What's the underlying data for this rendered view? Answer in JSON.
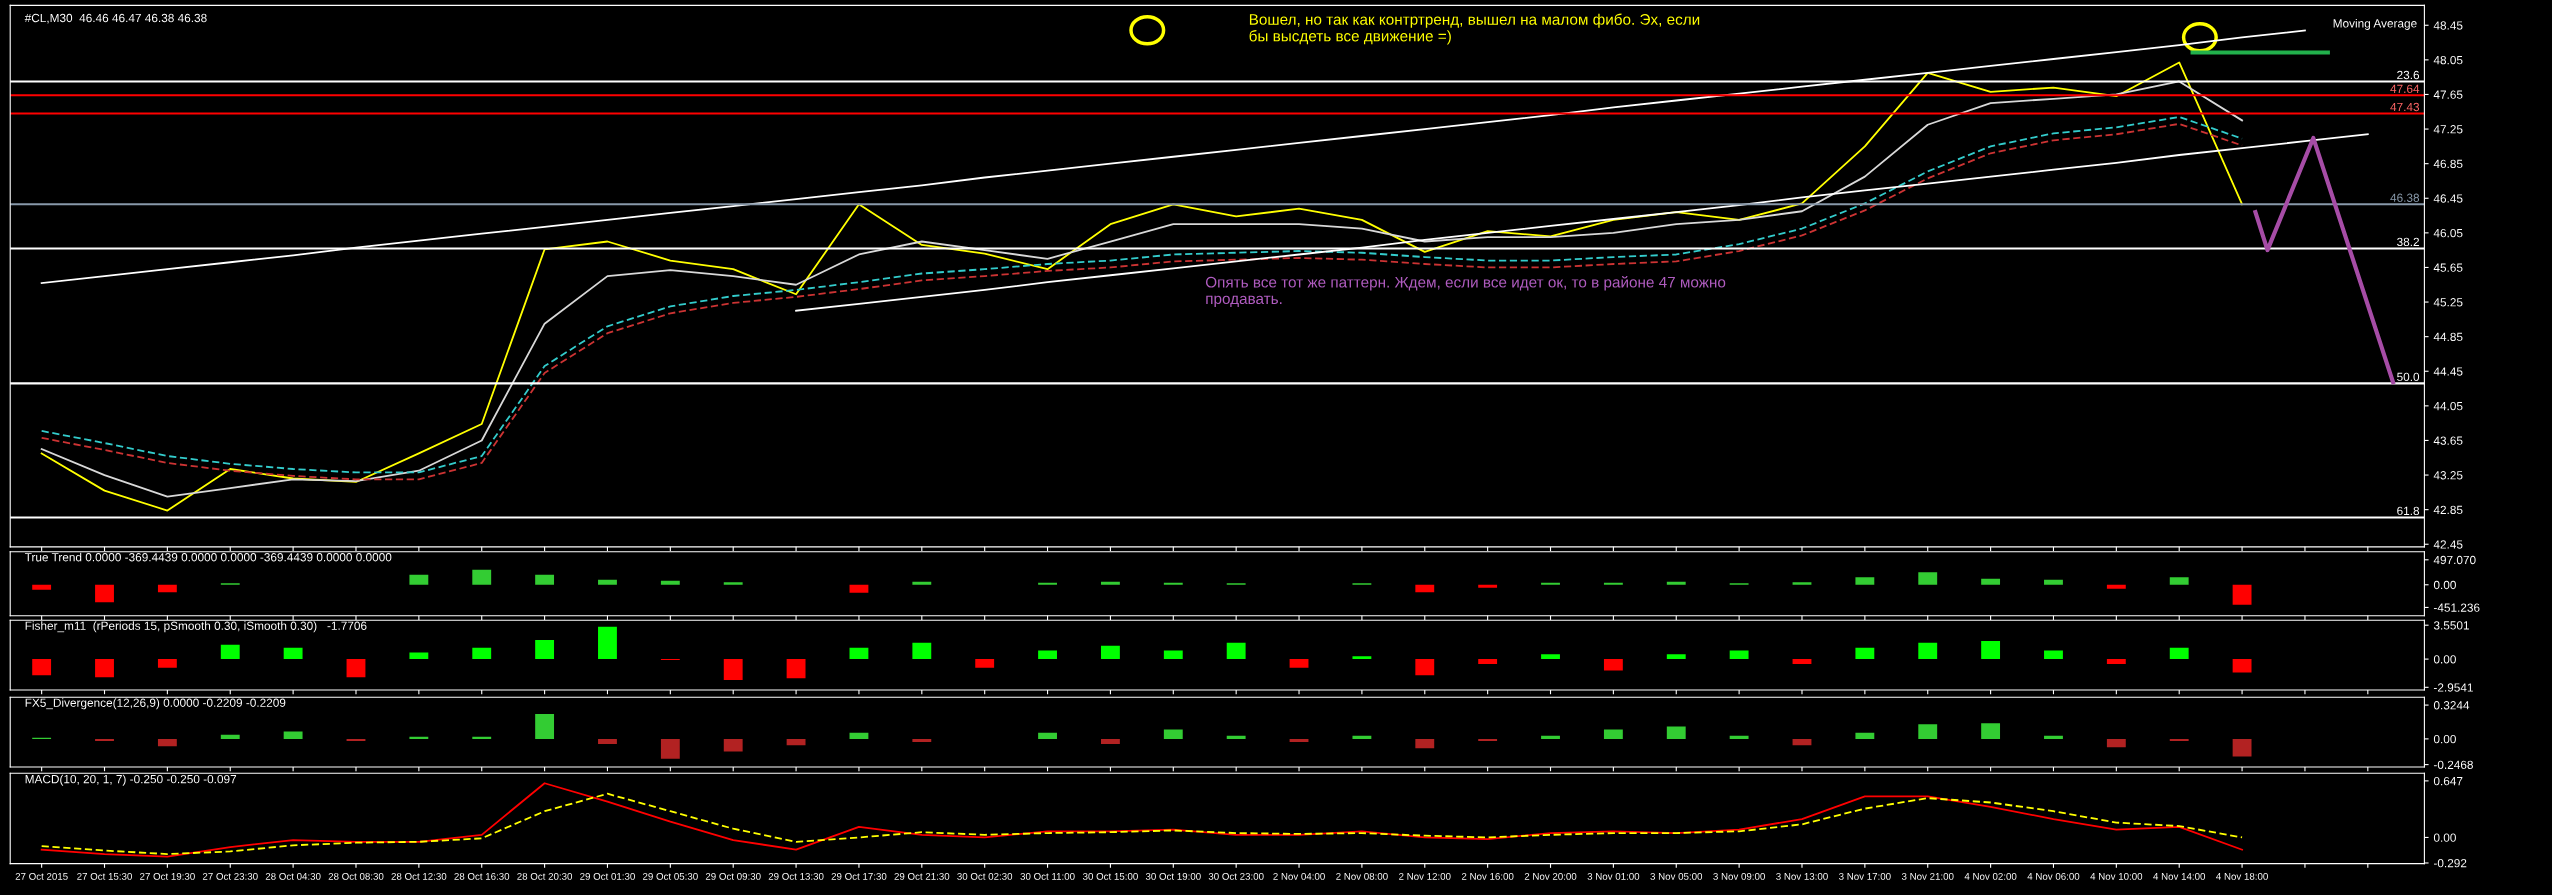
{
  "chart_data": [
    {
      "type": "line",
      "title": "#CL,M30  46.46 46.47 46.38 46.38",
      "tick_labels": "y",
      "grid": false,
      "series": [
        {
          "color": "#ffff00",
          "values": [
            43.5,
            43.07,
            42.84,
            43.32,
            43.21,
            43.17,
            43.5,
            43.84,
            45.86,
            45.95,
            45.73,
            45.63,
            45.34,
            46.38,
            45.91,
            45.81,
            45.63,
            46.15,
            46.38,
            46.24,
            46.33,
            46.2,
            45.83,
            46.07,
            46.01,
            46.2,
            46.29,
            46.2,
            46.39,
            47.05,
            47.9,
            47.68,
            47.73,
            47.63,
            48.02,
            46.38,
            null,
            null
          ]
        },
        {
          "color": "#d8d8d8",
          "values": [
            43.55,
            43.25,
            43.0,
            43.1,
            43.2,
            43.18,
            43.3,
            43.65,
            45.0,
            45.55,
            45.62,
            45.55,
            45.45,
            45.8,
            45.95,
            45.85,
            45.75,
            45.95,
            46.15,
            46.15,
            46.15,
            46.1,
            45.95,
            46.0,
            46.0,
            46.05,
            46.15,
            46.2,
            46.3,
            46.7,
            47.3,
            47.55,
            47.6,
            47.65,
            47.8,
            47.35,
            null,
            null
          ]
        },
        {
          "color": "#33cccc",
          "line_style": "dashed",
          "values": [
            43.76,
            43.62,
            43.47,
            43.38,
            43.32,
            43.28,
            43.28,
            43.47,
            44.51,
            44.97,
            45.2,
            45.32,
            45.39,
            45.48,
            45.58,
            45.63,
            45.69,
            45.73,
            45.8,
            45.82,
            45.84,
            45.82,
            45.77,
            45.73,
            45.73,
            45.77,
            45.8,
            45.92,
            46.1,
            46.39,
            46.76,
            47.05,
            47.2,
            47.27,
            47.39,
            47.14,
            null,
            null
          ]
        },
        {
          "color": "#cc3333",
          "line_style": "dashed",
          "values": [
            43.68,
            43.54,
            43.39,
            43.3,
            43.24,
            43.2,
            43.2,
            43.39,
            44.43,
            44.89,
            45.12,
            45.24,
            45.31,
            45.4,
            45.5,
            45.55,
            45.61,
            45.65,
            45.72,
            45.74,
            45.76,
            45.74,
            45.69,
            45.65,
            45.65,
            45.69,
            45.72,
            45.84,
            46.02,
            46.31,
            46.68,
            46.97,
            47.12,
            47.19,
            47.31,
            47.06,
            null,
            null
          ]
        },
        {
          "color": "#ffffff",
          "values": [
            45.47,
            45.55,
            45.63,
            45.71,
            45.79,
            45.88,
            45.96,
            46.04,
            46.12,
            46.2,
            46.28,
            46.36,
            46.44,
            46.52,
            46.6,
            46.69,
            46.77,
            46.85,
            46.93,
            47.01,
            47.09,
            47.17,
            47.25,
            47.33,
            47.41,
            47.5,
            47.58,
            47.66,
            47.74,
            47.82,
            47.9,
            47.98,
            48.06,
            48.14,
            48.22,
            48.31,
            48.39,
            null
          ]
        },
        {
          "color": "#ffffff",
          "values": [
            null,
            null,
            null,
            null,
            null,
            null,
            null,
            null,
            null,
            null,
            null,
            null,
            45.15,
            45.23,
            45.31,
            45.39,
            45.48,
            45.56,
            45.64,
            45.72,
            45.8,
            45.88,
            45.97,
            46.05,
            46.13,
            46.21,
            46.29,
            46.37,
            46.46,
            46.54,
            46.62,
            46.7,
            46.78,
            46.86,
            46.95,
            47.03,
            47.11,
            47.19
          ]
        }
      ],
      "ref_lines": [
        {
          "axis": "y",
          "value": 47.8,
          "color": "#ffffff"
        },
        {
          "axis": "y",
          "value": 45.87,
          "color": "#ffffff"
        },
        {
          "axis": "y",
          "value": 44.31,
          "color": "#ffffff"
        },
        {
          "axis": "y",
          "value": 42.76,
          "color": "#ffffff"
        },
        {
          "axis": "y",
          "value": 47.64,
          "label": "47.64",
          "color": "#ff0000"
        },
        {
          "axis": "y",
          "value": 47.43,
          "label": "47.43",
          "color": "#ff0000"
        },
        {
          "axis": "y",
          "value": 46.38,
          "label": "46.38",
          "color": "#8899aa"
        }
      ],
      "annotations": [
        "Вошел, но так как контртренд, вышел на малом фибо. Эх, если бы высдеть все движение =)",
        "Опять все тот же паттерн. Ждем, если все идет ок, то в районе 47 можно продавать.",
        "Moving Average",
        {
          "text": "23.6",
          "y": 47.8
        },
        {
          "text": "38.2",
          "y": 45.87
        },
        {
          "text": "50.0",
          "y": 44.31
        },
        {
          "text": "61.8",
          "y": 42.76
        }
      ],
      "ylim": [
        42.42,
        48.68
      ],
      "yticks": [
        48.45,
        48.05,
        47.65,
        47.25,
        46.85,
        46.45,
        46.05,
        45.65,
        45.25,
        44.85,
        44.45,
        44.05,
        43.65,
        43.25,
        42.85,
        42.45
      ]
    },
    {
      "type": "bar",
      "title": "True Trend 0.0000 -369.4439 0.0000 0.0000 -369.4439 0.0000 0.0000",
      "tick_labels": "y",
      "values": [
        -100,
        -350,
        -150,
        30,
        0,
        0,
        200,
        300,
        200,
        100,
        80,
        50,
        0,
        -160,
        60,
        0,
        40,
        60,
        40,
        30,
        0,
        30,
        -150,
        -60,
        40,
        40,
        60,
        30,
        50,
        150,
        250,
        120,
        100,
        -80,
        150,
        -400,
        null,
        null
      ],
      "colors": [
        "#ff0000",
        "#ff0000",
        "#ff0000",
        "#33cc33",
        "#33cc33",
        "#33cc33",
        "#33cc33",
        "#33cc33",
        "#33cc33",
        "#33cc33",
        "#33cc33",
        "#33cc33",
        "#33cc33",
        "#ff0000",
        "#33cc33",
        "#33cc33",
        "#33cc33",
        "#33cc33",
        "#33cc33",
        "#33cc33",
        "#33cc33",
        "#33cc33",
        "#ff0000",
        "#ff0000",
        "#33cc33",
        "#33cc33",
        "#33cc33",
        "#33cc33",
        "#33cc33",
        "#33cc33",
        "#33cc33",
        "#33cc33",
        "#33cc33",
        "#ff0000",
        "#33cc33",
        "#ff0000",
        "#33cc33",
        "#33cc33"
      ],
      "ylim": [
        -617,
        657
      ],
      "yticks": [
        {
          "value": 497.07,
          "label": "497.070"
        },
        {
          "value": 0,
          "label": "0.00"
        },
        {
          "value": -451.236,
          "label": "-451.236"
        }
      ]
    },
    {
      "type": "bar",
      "title": "Fisher_m11  (rPeriods 15, pSmooth 0.30, iSmooth 0.30)   -1.7706",
      "tick_labels": "y",
      "values": [
        -1.7,
        -1.9,
        -0.9,
        1.5,
        1.2,
        -1.9,
        0.7,
        1.2,
        2.0,
        3.4,
        -0.1,
        -2.2,
        -2.0,
        1.2,
        1.7,
        -0.9,
        0.9,
        1.4,
        0.9,
        1.7,
        -0.9,
        0.3,
        -1.7,
        -0.5,
        0.5,
        -1.2,
        0.5,
        0.9,
        -0.5,
        1.2,
        1.7,
        1.9,
        0.9,
        -0.5,
        1.2,
        -1.4,
        null,
        null
      ],
      "colors": [
        "#ff0000",
        "#ff0000",
        "#ff0000",
        "#00ff00",
        "#00ff00",
        "#ff0000",
        "#00ff00",
        "#00ff00",
        "#00ff00",
        "#00ff00",
        "#ff0000",
        "#ff0000",
        "#ff0000",
        "#00ff00",
        "#00ff00",
        "#ff0000",
        "#00ff00",
        "#00ff00",
        "#00ff00",
        "#00ff00",
        "#ff0000",
        "#00ff00",
        "#ff0000",
        "#ff0000",
        "#00ff00",
        "#ff0000",
        "#00ff00",
        "#00ff00",
        "#ff0000",
        "#00ff00",
        "#00ff00",
        "#00ff00",
        "#00ff00",
        "#ff0000",
        "#00ff00",
        "#ff0000",
        "#00ff00",
        "#00ff00"
      ],
      "ylim": [
        -3.24,
        4.07
      ],
      "yticks": [
        3.5501,
        {
          "value": 0,
          "label": "0.00"
        },
        -2.9541
      ]
    },
    {
      "type": "bar",
      "title": "FX5_Divergence(12,26,9) 0.0000 -0.2209 -0.2209",
      "tick_labels": "y",
      "values": [
        0.01,
        -0.02,
        -0.07,
        0.04,
        0.07,
        -0.02,
        0.02,
        0.02,
        0.24,
        -0.05,
        -0.19,
        -0.12,
        -0.06,
        0.06,
        -0.03,
        0,
        0.06,
        -0.05,
        0.09,
        0.03,
        -0.03,
        0.03,
        -0.09,
        -0.02,
        0.03,
        0.09,
        0.12,
        0.03,
        -0.06,
        0.06,
        0.14,
        0.15,
        0.03,
        -0.08,
        -0.02,
        -0.17,
        null,
        null
      ],
      "colors": [
        "#33cc33",
        "#b22222",
        "#b22222",
        "#33cc33",
        "#33cc33",
        "#b22222",
        "#33cc33",
        "#33cc33",
        "#33cc33",
        "#b22222",
        "#b22222",
        "#b22222",
        "#b22222",
        "#33cc33",
        "#b22222",
        "#33cc33",
        "#33cc33",
        "#b22222",
        "#33cc33",
        "#33cc33",
        "#b22222",
        "#33cc33",
        "#b22222",
        "#b22222",
        "#33cc33",
        "#33cc33",
        "#33cc33",
        "#33cc33",
        "#b22222",
        "#33cc33",
        "#33cc33",
        "#33cc33",
        "#33cc33",
        "#b22222",
        "#b22222",
        "#b22222",
        "#33cc33",
        "#33cc33"
      ],
      "ylim": [
        -0.27,
        0.4
      ],
      "yticks": [
        0.3244,
        {
          "value": 0,
          "label": "0.00"
        },
        -0.2468
      ]
    },
    {
      "type": "line",
      "title": "MACD(10, 20, 1, 7) -0.250 -0.250 -0.097",
      "categories": [
        "27 Oct 2015",
        "27 Oct 15:30",
        "27 Oct 19:30",
        "27 Oct 23:30",
        "28 Oct 04:30",
        "28 Oct 08:30",
        "28 Oct 12:30",
        "28 Oct 16:30",
        "28 Oct 20:30",
        "29 Oct 01:30",
        "29 Oct 05:30",
        "29 Oct 09:30",
        "29 Oct 13:30",
        "29 Oct 17:30",
        "29 Oct 21:30",
        "30 Oct 02:30",
        "30 Oct 11:00",
        "30 Oct 15:00",
        "30 Oct 19:00",
        "30 Oct 23:00",
        "2 Nov 04:00",
        "2 Nov 08:00",
        "2 Nov 12:00",
        "2 Nov 16:00",
        "2 Nov 20:00",
        "3 Nov 01:00",
        "3 Nov 05:00",
        "3 Nov 09:00",
        "3 Nov 13:00",
        "3 Nov 17:00",
        "3 Nov 21:00",
        "4 Nov 02:00",
        "4 Nov 06:00",
        "4 Nov 10:00",
        "4 Nov 14:00",
        "4 Nov 18:00",
        null,
        null
      ],
      "series": [
        {
          "color": "#ff0000",
          "values": [
            -0.14,
            -0.19,
            -0.22,
            -0.11,
            -0.03,
            -0.05,
            -0.05,
            0.03,
            0.62,
            0.41,
            0.18,
            -0.03,
            -0.14,
            0.12,
            0.03,
            0,
            0.07,
            0.07,
            0.09,
            0.03,
            0.03,
            0.07,
            0,
            -0.02,
            0.05,
            0.07,
            0.05,
            0.09,
            0.21,
            0.47,
            0.47,
            0.35,
            0.21,
            0.09,
            0.12,
            -0.14,
            null,
            null
          ]
        },
        {
          "color": "#ffff00",
          "line_style": "dashed",
          "values": [
            -0.1,
            -0.15,
            -0.19,
            -0.16,
            -0.09,
            -0.06,
            -0.05,
            -0.01,
            0.3,
            0.5,
            0.3,
            0.1,
            -0.05,
            0.0,
            0.06,
            0.03,
            0.05,
            0.06,
            0.08,
            0.05,
            0.04,
            0.05,
            0.02,
            0.0,
            0.03,
            0.05,
            0.05,
            0.07,
            0.15,
            0.33,
            0.45,
            0.4,
            0.3,
            0.17,
            0.13,
            0.0,
            null,
            null
          ]
        }
      ],
      "ylim": [
        -0.3,
        0.734
      ],
      "yticks": [
        0.647,
        {
          "value": 0,
          "label": "0.00"
        },
        -0.292
      ]
    }
  ]
}
